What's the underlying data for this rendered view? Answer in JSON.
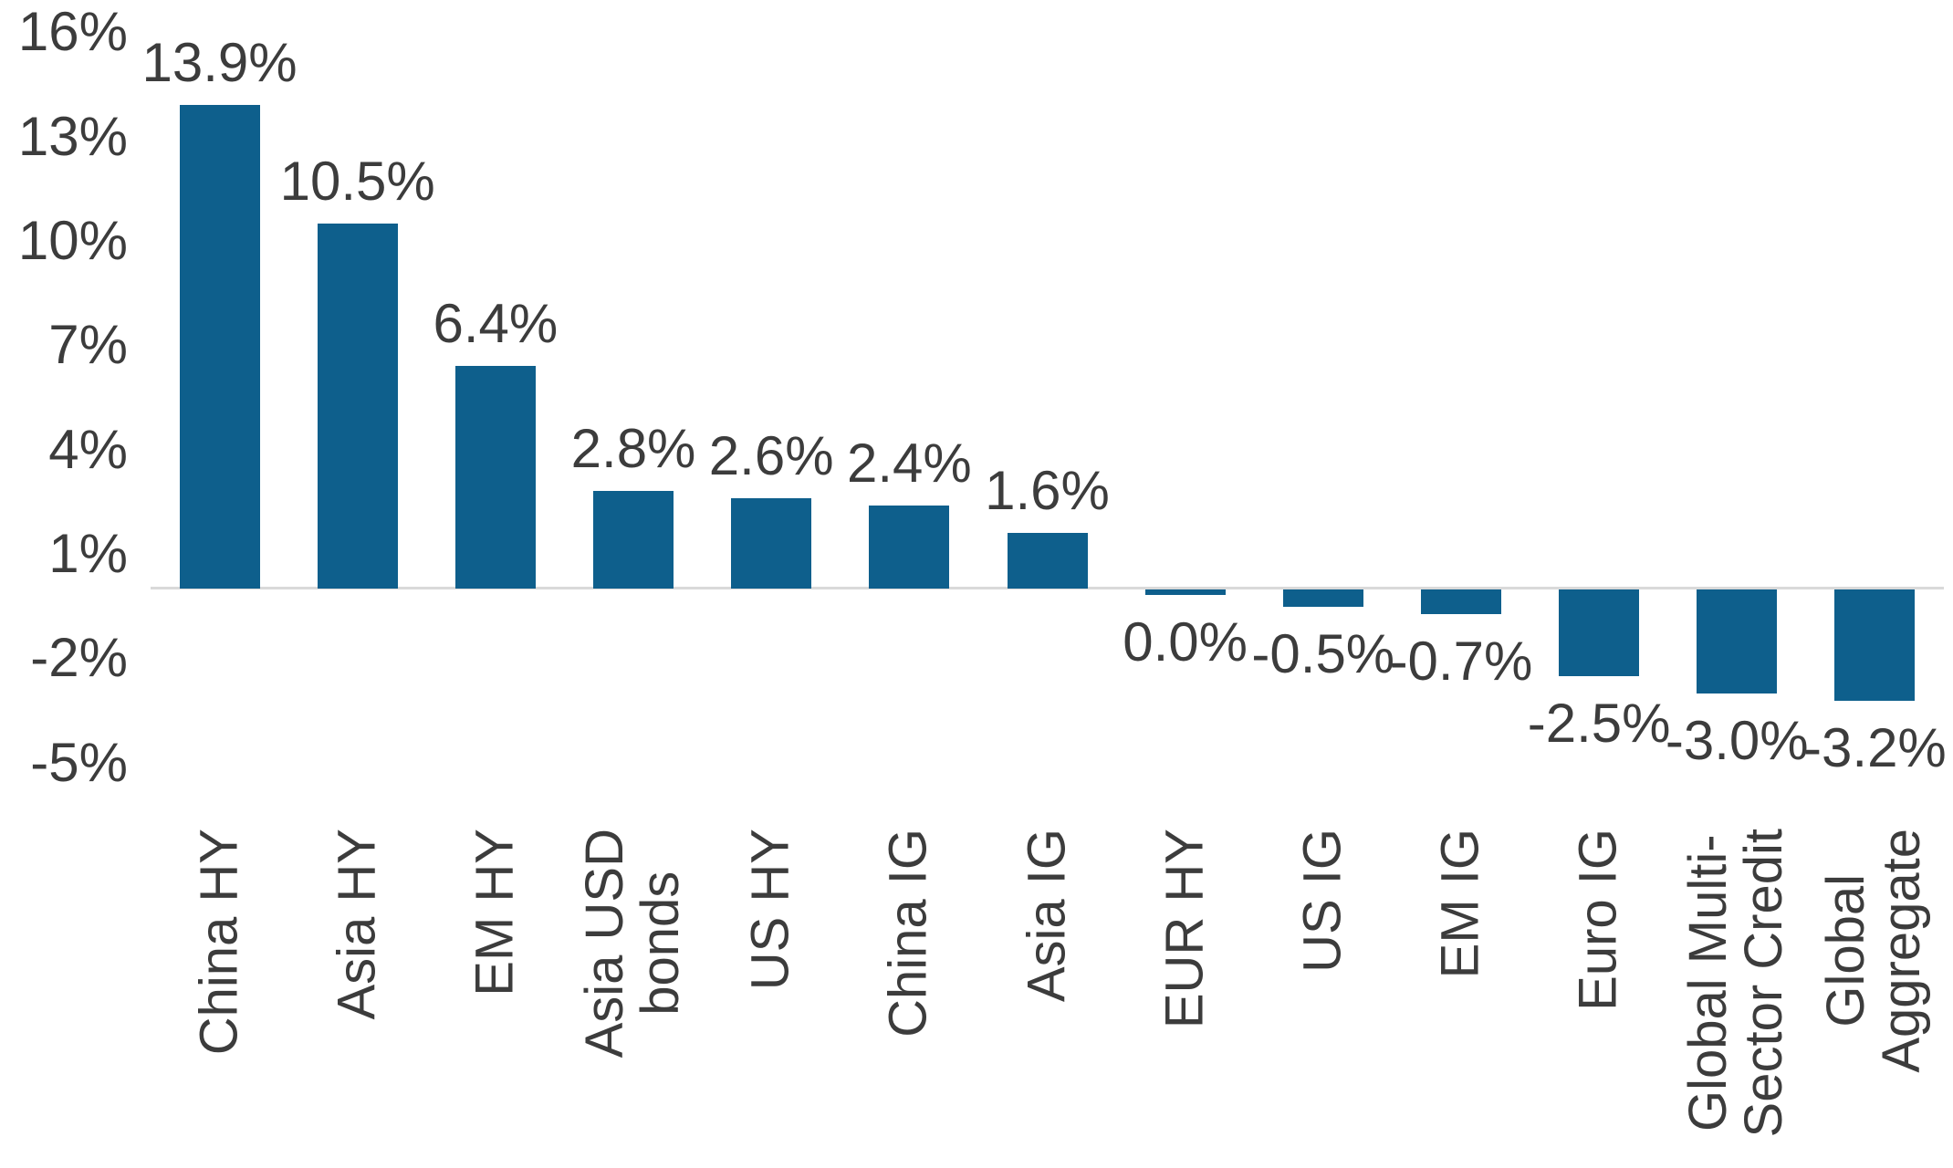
{
  "chart_data": {
    "type": "bar",
    "title": "",
    "xlabel": "",
    "ylabel": "",
    "categories": [
      "China HY",
      "Asia HY",
      "EM HY",
      "Asia USD\nbonds",
      "US HY",
      "China IG",
      "Asia IG",
      "EUR HY",
      "US IG",
      "EM IG",
      "Euro IG",
      "Global Multi-\nSector Credit",
      "Global\nAggregate"
    ],
    "values": [
      13.9,
      10.5,
      6.4,
      2.8,
      2.6,
      2.4,
      1.6,
      0.0,
      -0.5,
      -0.7,
      -2.5,
      -3.0,
      -3.2
    ],
    "value_labels": [
      "13.9%",
      "10.5%",
      "6.4%",
      "2.8%",
      "2.6%",
      "2.4%",
      "1.6%",
      "0.0%",
      "-0.5%",
      "-0.7%",
      "-2.5%",
      "-3.0%",
      "-3.2%"
    ],
    "y_ticks": [
      "16%",
      "13%",
      "10%",
      "7%",
      "4%",
      "1%",
      "-2%",
      "-5%"
    ],
    "y_tick_values": [
      16,
      13,
      10,
      7,
      4,
      1,
      -2,
      -5
    ],
    "ylim": [
      -5,
      16
    ],
    "grid": "off",
    "legend": "none",
    "x_labels_rotation_degrees": -90,
    "colors": {
      "bar": "#0E5F8C",
      "label": "#3C3C3C",
      "axis_line": "#D9D9D9",
      "background": "#FFFFFF"
    }
  }
}
